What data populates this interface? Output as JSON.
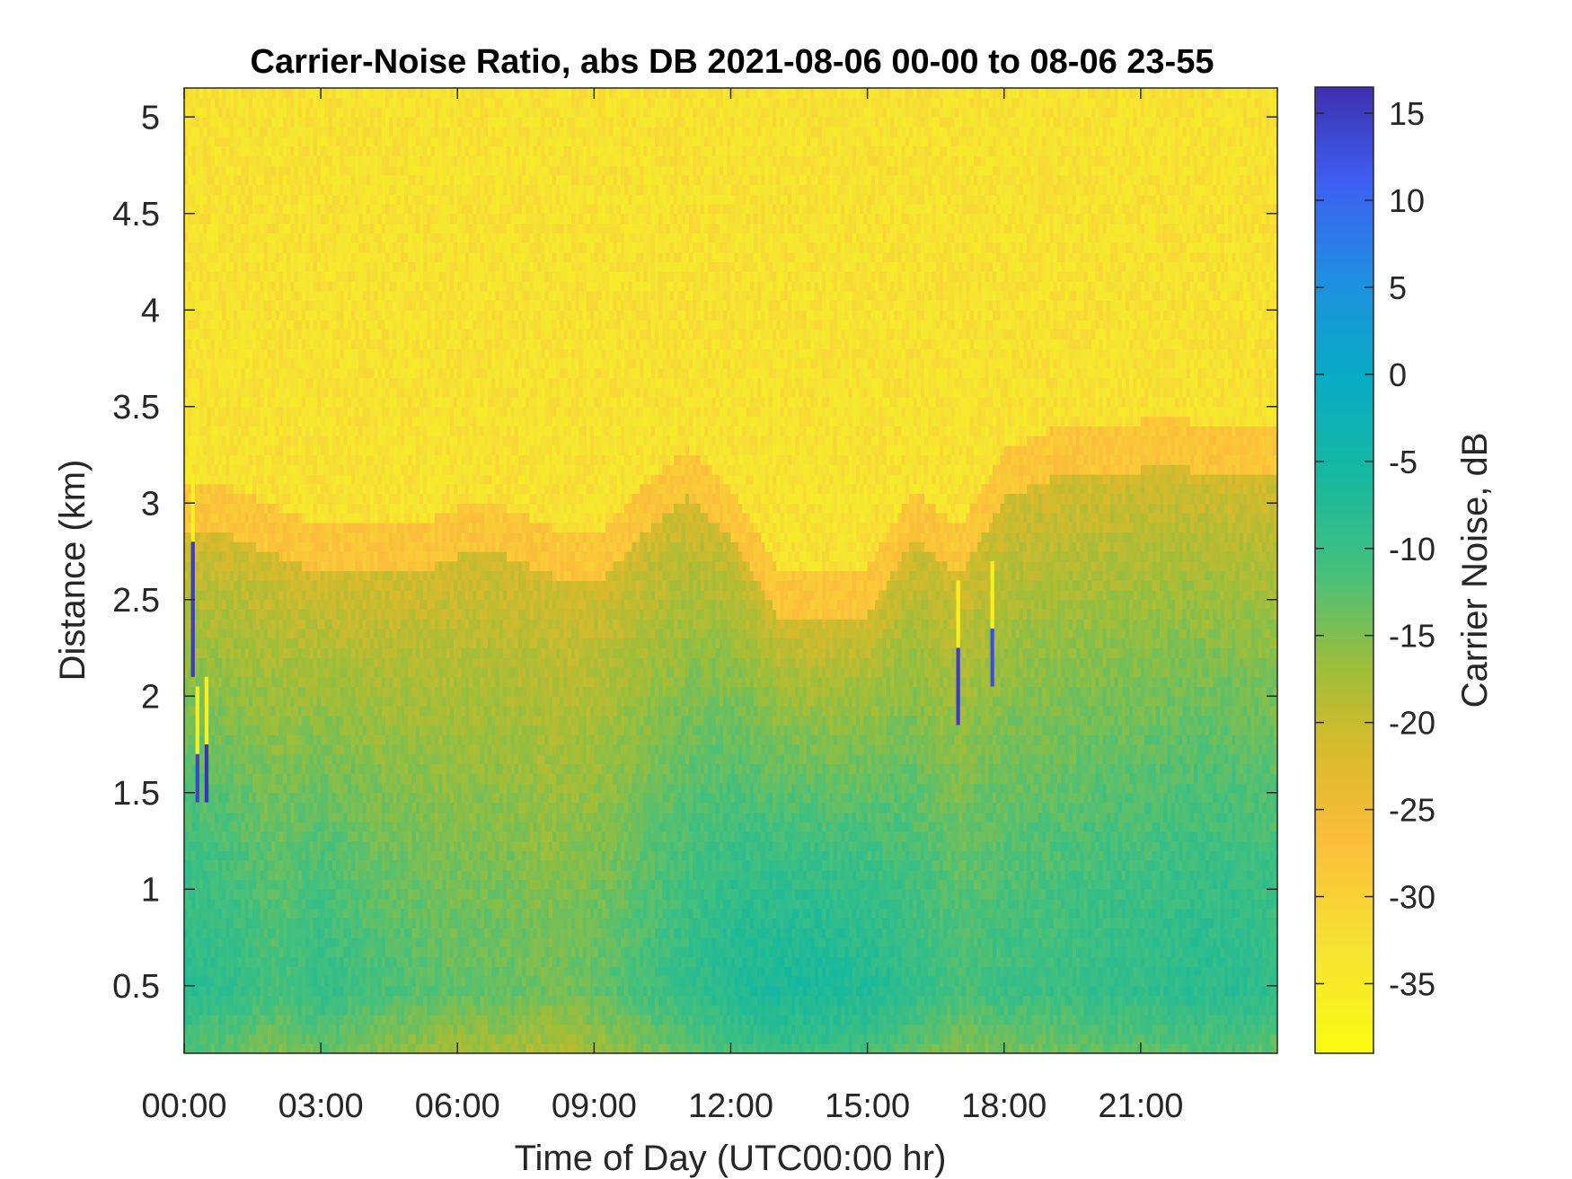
{
  "chart_data": {
    "type": "heatmap",
    "title": "Carrier-Noise Ratio, abs DB 2021-08-06 00-00 to 08-06 23-55",
    "xlabel": "Time of Day (UTC00:00 hr)",
    "ylabel": "Distance (km)",
    "colorbar_label": "Carrier Noise, dB",
    "x_unit": "hours UTC",
    "xlim": [
      0,
      24
    ],
    "ylim": [
      0.15,
      5.15
    ],
    "clim": [
      -39,
      16.5
    ],
    "x_ticks": [
      0,
      3,
      6,
      9,
      12,
      15,
      18,
      21
    ],
    "x_tick_labels": [
      "00:00",
      "03:00",
      "06:00",
      "09:00",
      "12:00",
      "15:00",
      "18:00",
      "21:00"
    ],
    "y_ticks": [
      0.5,
      1,
      1.5,
      2,
      2.5,
      3,
      3.5,
      4,
      4.5,
      5
    ],
    "y_tick_labels": [
      "0.5",
      "1",
      "1.5",
      "2",
      "2.5",
      "3",
      "3.5",
      "4",
      "4.5",
      "5"
    ],
    "colorbar_ticks": [
      15,
      10,
      5,
      0,
      -5,
      -10,
      -15,
      -20,
      -25,
      -30,
      -35
    ],
    "colorbar_tick_labels": [
      "15",
      "10",
      "5",
      "0",
      "-5",
      "-10",
      "-15",
      "-20",
      "-25",
      "-30",
      "-35"
    ],
    "colormap": "parula",
    "grid": false,
    "description_values": {
      "time_hours": [
        0,
        1,
        2,
        3,
        4,
        5,
        6,
        7,
        8,
        9,
        10,
        11,
        12,
        13,
        14,
        15,
        16,
        17,
        18,
        19,
        20,
        21,
        22,
        23,
        24
      ],
      "signal_top_km": [
        2.8,
        2.8,
        2.7,
        2.6,
        2.6,
        2.6,
        2.7,
        2.7,
        2.6,
        2.55,
        2.8,
        3.0,
        2.8,
        2.4,
        2.35,
        2.4,
        2.8,
        2.6,
        3.0,
        3.1,
        3.1,
        3.15,
        3.15,
        3.1,
        3.1
      ],
      "near_range_cnr_db": [
        -8,
        -9,
        -11,
        -9,
        -11,
        -12,
        -13,
        -13,
        -14,
        -13,
        -11,
        -9,
        -7,
        -6,
        -6,
        -7,
        -9,
        -11,
        -10,
        -10,
        -9,
        -9,
        -8,
        -8,
        -9
      ],
      "background_cnr_db": -33
    },
    "spikes": [
      {
        "time_hour": 0.15,
        "from_km": 2.1,
        "to_km": 2.8,
        "value_db": 15
      },
      {
        "time_hour": 0.25,
        "from_km": 1.45,
        "to_km": 1.7,
        "value_db": 14
      },
      {
        "time_hour": 0.45,
        "from_km": 1.45,
        "to_km": 1.75,
        "value_db": 16
      },
      {
        "time_hour": 16.95,
        "from_km": 1.85,
        "to_km": 2.25,
        "value_db": 15
      },
      {
        "time_hour": 17.7,
        "from_km": 2.05,
        "to_km": 2.35,
        "value_db": 13
      }
    ]
  }
}
